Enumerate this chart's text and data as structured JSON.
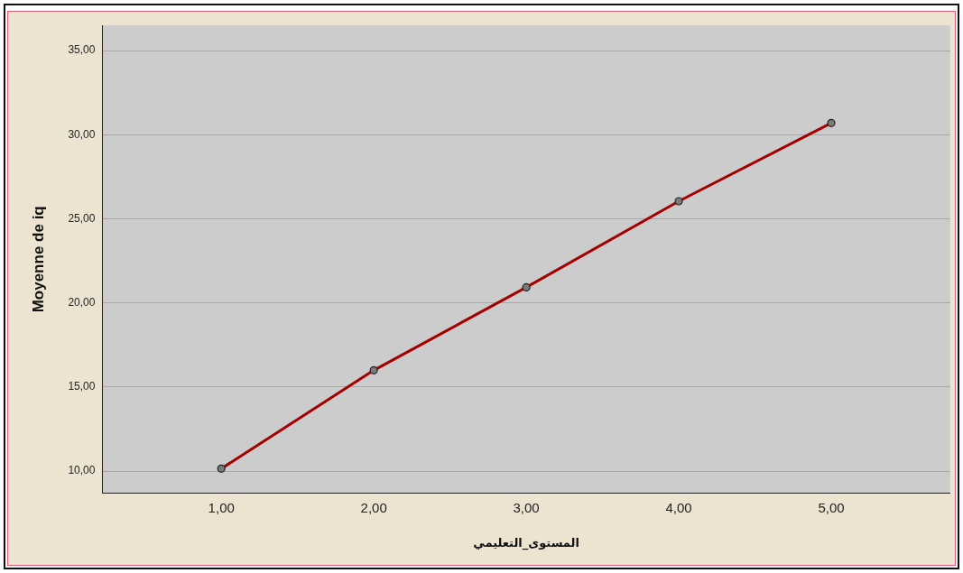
{
  "chart_data": {
    "type": "line",
    "xlabel": "المستوى_التعليمي",
    "ylabel": "Moyenne de iq",
    "x": [
      1,
      2,
      3,
      4,
      5
    ],
    "series": [
      {
        "color": "#a50000",
        "values": [
          10.15,
          16.0,
          20.93,
          26.05,
          30.7
        ]
      }
    ],
    "xlim": [
      0.22,
      5.78
    ],
    "ylim": [
      8.7,
      36.5
    ],
    "xticks": [
      {
        "value": 1,
        "label": "1,00"
      },
      {
        "value": 2,
        "label": "2,00"
      },
      {
        "value": 3,
        "label": "3,00"
      },
      {
        "value": 4,
        "label": "4,00"
      },
      {
        "value": 5,
        "label": "5,00"
      }
    ],
    "yticks": [
      {
        "value": 10,
        "label": "10,00"
      },
      {
        "value": 15,
        "label": "15,00"
      },
      {
        "value": 20,
        "label": "20,00"
      },
      {
        "value": 25,
        "label": "25,00"
      },
      {
        "value": 30,
        "label": "30,00"
      },
      {
        "value": 35,
        "label": "35,00"
      }
    ],
    "grid": "y",
    "marker": "circle",
    "line_style": "solid",
    "legend": false
  }
}
